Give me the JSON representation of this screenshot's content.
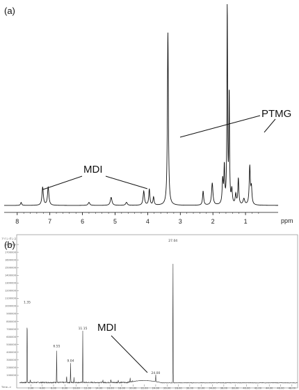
{
  "chart_data": [
    {
      "type": "line",
      "panel_label": "(a)",
      "xlabel": "ppm",
      "x_reversed": true,
      "xlim": [
        8.4,
        0.0
      ],
      "ylim": [
        0,
        100
      ],
      "x_ticks": [
        "8",
        "7",
        "6",
        "5",
        "4",
        "3",
        "2",
        "1"
      ],
      "x_tick_values": [
        8,
        7,
        6,
        5,
        4,
        3,
        2,
        1
      ],
      "annotations": [
        {
          "text": "MDI",
          "points_to_ppm": [
            7.0,
            4.1
          ]
        },
        {
          "text": "PTMG",
          "points_to_ppm": [
            3.3,
            1.5
          ]
        }
      ],
      "peaks": [
        {
          "ppm": 7.88,
          "height": 1.5,
          "width": 0.02
        },
        {
          "ppm": 7.22,
          "height": 9,
          "width": 0.025
        },
        {
          "ppm": 7.05,
          "height": 9,
          "width": 0.025
        },
        {
          "ppm": 5.8,
          "height": 1.5,
          "width": 0.03
        },
        {
          "ppm": 5.12,
          "height": 4,
          "width": 0.03
        },
        {
          "ppm": 4.65,
          "height": 1.5,
          "width": 0.03
        },
        {
          "ppm": 4.12,
          "height": 7,
          "width": 0.025
        },
        {
          "ppm": 3.95,
          "height": 8,
          "width": 0.02
        },
        {
          "ppm": 3.82,
          "height": 4,
          "width": 0.02
        },
        {
          "ppm": 3.38,
          "height": 86,
          "width": 0.018
        },
        {
          "ppm": 2.3,
          "height": 7,
          "width": 0.02
        },
        {
          "ppm": 2.02,
          "height": 11,
          "width": 0.025
        },
        {
          "ppm": 1.7,
          "height": 12,
          "width": 0.02
        },
        {
          "ppm": 1.65,
          "height": 18,
          "width": 0.015
        },
        {
          "ppm": 1.56,
          "height": 99,
          "width": 0.012
        },
        {
          "ppm": 1.5,
          "height": 55,
          "width": 0.012
        },
        {
          "ppm": 1.42,
          "height": 7,
          "width": 0.02
        },
        {
          "ppm": 1.3,
          "height": 5,
          "width": 0.02
        },
        {
          "ppm": 1.22,
          "height": 13,
          "width": 0.018
        },
        {
          "ppm": 1.05,
          "height": 3,
          "width": 0.03
        },
        {
          "ppm": 0.87,
          "height": 19,
          "width": 0.02
        },
        {
          "ppm": 0.82,
          "height": 8,
          "width": 0.02
        }
      ]
    },
    {
      "type": "line",
      "panel_label": "(b)",
      "y_axis_title": "アバンダンス",
      "x_axis_title": "Time-->",
      "xlim": [
        0.0,
        49.0
      ],
      "ylim": [
        0,
        1900000
      ],
      "x_ticks": [
        "2.00",
        "4.00",
        "6.00",
        "8.00",
        "10.00",
        "12.00",
        "14.00",
        "16.00",
        "18.00",
        "20.00",
        "22.00",
        "24.00",
        "26.00",
        "28.00",
        "30.00",
        "32.00",
        "34.00",
        "36.00",
        "38.00",
        "40.00",
        "42.00",
        "44.00",
        "46.00",
        "48.00"
      ],
      "x_tick_values": [
        2,
        4,
        6,
        8,
        10,
        12,
        14,
        16,
        18,
        20,
        22,
        24,
        26,
        28,
        30,
        32,
        34,
        36,
        38,
        40,
        42,
        44,
        46,
        48
      ],
      "y_ticks": [
        "100000",
        "200000",
        "300000",
        "400000",
        "500000",
        "600000",
        "700000",
        "800000",
        "900000",
        "1000000",
        "1100000",
        "1200000",
        "1300000",
        "1400000",
        "1500000",
        "1600000",
        "1700000",
        "1800000"
      ],
      "y_tick_values": [
        100000,
        200000,
        300000,
        400000,
        500000,
        600000,
        700000,
        800000,
        900000,
        1000000,
        1100000,
        1200000,
        1300000,
        1400000,
        1500000,
        1600000,
        1700000,
        1800000
      ],
      "annotations": [
        {
          "text": "MDI",
          "points_to_time": 24.0
        }
      ],
      "peaks": [
        {
          "time": 1.35,
          "height": 1020000,
          "label": "1.35"
        },
        {
          "time": 1.9,
          "height": 40000,
          "label": ""
        },
        {
          "time": 6.55,
          "height": 450000,
          "label": "6.55"
        },
        {
          "time": 8.3,
          "height": 100000,
          "label": ""
        },
        {
          "time": 9.0,
          "height": 260000,
          "label": "9.04"
        },
        {
          "time": 9.6,
          "height": 70000,
          "label": ""
        },
        {
          "time": 11.15,
          "height": 680000,
          "label": "11.15"
        },
        {
          "time": 14.7,
          "height": 30000,
          "label": ""
        },
        {
          "time": 16.1,
          "height": 50000,
          "label": ""
        },
        {
          "time": 17.4,
          "height": 40000,
          "label": ""
        },
        {
          "time": 19.5,
          "height": 60000,
          "label": ""
        },
        {
          "time": 24.0,
          "height": 100000,
          "label": "24.00"
        },
        {
          "time": 27.04,
          "height": 1820000,
          "label": "27.04"
        }
      ],
      "hump": {
        "from": 19.0,
        "to": 25.0,
        "height": 30000
      }
    }
  ]
}
